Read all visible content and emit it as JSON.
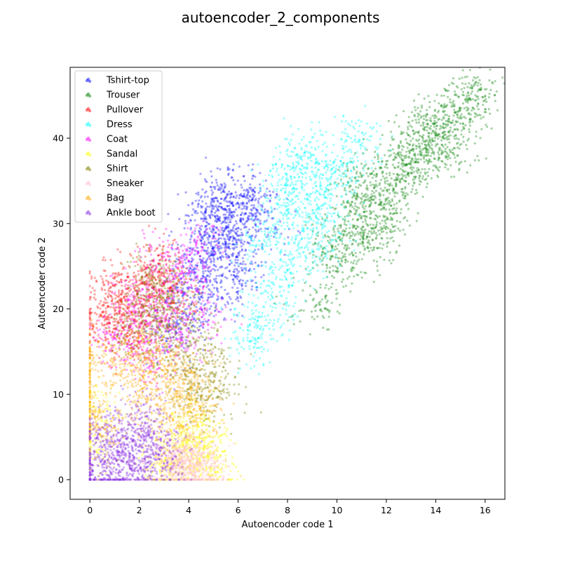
{
  "chart_data": {
    "type": "scatter",
    "title": "autoencoder_2_components",
    "xlabel": "Autoencoder code 1",
    "ylabel": "Autoencoder code 2",
    "xlim": [
      -0.8,
      16.8
    ],
    "ylim": [
      -2.3,
      48.3
    ],
    "xticks": [
      0,
      2,
      4,
      6,
      8,
      10,
      12,
      14,
      16
    ],
    "yticks": [
      0,
      10,
      20,
      30,
      40
    ],
    "grid": false,
    "legend_position": "top-left",
    "series": [
      {
        "name": "Tshirt-top",
        "color": "#0000ff",
        "points": [
          [
            4.5,
            28.0
          ],
          [
            5.2,
            30.5
          ],
          [
            5.8,
            32.1
          ],
          [
            6.3,
            31.2
          ],
          [
            4.9,
            26.3
          ],
          [
            5.5,
            27.8
          ],
          [
            6.6,
            33.4
          ],
          [
            4.2,
            24.6
          ],
          [
            5.0,
            21.7
          ],
          [
            5.7,
            29.2
          ],
          [
            3.8,
            19.5
          ],
          [
            6.1,
            25.3
          ],
          [
            4.7,
            31.6
          ],
          [
            5.4,
            33.8
          ],
          [
            6.9,
            30.0
          ],
          [
            3.5,
            17.2
          ],
          [
            4.0,
            22.5
          ],
          [
            5.9,
            23.8
          ]
        ]
      },
      {
        "name": "Trouser",
        "color": "#008000",
        "points": [
          [
            9.8,
            27.3
          ],
          [
            10.5,
            28.9
          ],
          [
            11.2,
            30.8
          ],
          [
            11.8,
            32.5
          ],
          [
            12.3,
            34.0
          ],
          [
            12.7,
            36.1
          ],
          [
            13.2,
            37.2
          ],
          [
            13.6,
            38.9
          ],
          [
            14.0,
            40.3
          ],
          [
            14.4,
            41.6
          ],
          [
            14.8,
            43.0
          ],
          [
            15.3,
            44.5
          ],
          [
            15.8,
            45.7
          ],
          [
            12.0,
            29.6
          ],
          [
            11.5,
            27.2
          ],
          [
            13.5,
            41.8
          ],
          [
            12.5,
            38.0
          ],
          [
            10.2,
            25.6
          ],
          [
            9.3,
            20.5
          ],
          [
            10.8,
            33.2
          ],
          [
            14.6,
            38.4
          ],
          [
            11.0,
            35.5
          ]
        ]
      },
      {
        "name": "Pullover",
        "color": "#ff0000",
        "points": [
          [
            1.2,
            20.1
          ],
          [
            1.8,
            22.4
          ],
          [
            2.3,
            24.0
          ],
          [
            0.8,
            18.3
          ],
          [
            2.6,
            21.5
          ],
          [
            1.5,
            16.8
          ],
          [
            3.1,
            23.2
          ],
          [
            0.5,
            19.6
          ],
          [
            2.0,
            17.9
          ],
          [
            1.0,
            22.8
          ],
          [
            3.4,
            20.7
          ],
          [
            2.8,
            25.3
          ]
        ]
      },
      {
        "name": "Dress",
        "color": "#00ffff",
        "points": [
          [
            7.0,
            27.5
          ],
          [
            7.6,
            30.2
          ],
          [
            8.2,
            32.8
          ],
          [
            8.8,
            29.4
          ],
          [
            9.3,
            33.5
          ],
          [
            9.8,
            35.8
          ],
          [
            10.4,
            37.0
          ],
          [
            8.0,
            24.5
          ],
          [
            7.4,
            21.3
          ],
          [
            9.0,
            26.7
          ],
          [
            8.5,
            36.4
          ],
          [
            6.8,
            18.6
          ],
          [
            9.6,
            30.9
          ],
          [
            10.9,
            39.8
          ],
          [
            7.9,
            34.5
          ],
          [
            6.5,
            16.2
          ],
          [
            8.9,
            38.3
          ]
        ]
      },
      {
        "name": "Coat",
        "color": "#ff00ff",
        "points": [
          [
            2.2,
            19.8
          ],
          [
            2.8,
            18.1
          ],
          [
            3.4,
            21.9
          ],
          [
            4.0,
            24.2
          ],
          [
            1.6,
            15.4
          ],
          [
            3.0,
            26.1
          ],
          [
            4.6,
            19.3
          ],
          [
            2.5,
            13.7
          ],
          [
            1.0,
            16.6
          ],
          [
            3.7,
            16.4
          ],
          [
            4.3,
            27.5
          ],
          [
            1.8,
            21.2
          ]
        ]
      },
      {
        "name": "Sandal",
        "color": "#ffff00",
        "points": [
          [
            4.2,
            4.8
          ],
          [
            4.6,
            2.7
          ],
          [
            3.9,
            1.2
          ],
          [
            4.8,
            0.6
          ],
          [
            3.5,
            3.5
          ],
          [
            4.4,
            6.2
          ],
          [
            3.2,
            1.8
          ],
          [
            4.9,
            3.9
          ],
          [
            3.7,
            5.5
          ],
          [
            2.9,
            0.4
          ],
          [
            0.1,
            8.5
          ],
          [
            0.3,
            3.2
          ]
        ]
      },
      {
        "name": "Shirt",
        "color": "#808000",
        "points": [
          [
            2.7,
            18.6
          ],
          [
            3.3,
            15.2
          ],
          [
            3.9,
            12.1
          ],
          [
            4.5,
            9.8
          ],
          [
            2.1,
            20.5
          ],
          [
            3.0,
            22.7
          ],
          [
            4.8,
            13.6
          ],
          [
            1.8,
            17.2
          ],
          [
            3.6,
            19.9
          ],
          [
            4.2,
            16.5
          ],
          [
            2.4,
            23.8
          ],
          [
            5.1,
            10.7
          ]
        ]
      },
      {
        "name": "Sneaker",
        "color": "#ffc0cb",
        "points": [
          [
            4.0,
            1.4
          ],
          [
            3.7,
            2.2
          ],
          [
            4.3,
            0.9
          ],
          [
            3.4,
            1.7
          ],
          [
            4.1,
            2.8
          ],
          [
            3.8,
            0.5
          ],
          [
            3.2,
            2.5
          ],
          [
            4.4,
            1.9
          ],
          [
            3.6,
            3.1
          ],
          [
            4.6,
            1.2
          ]
        ]
      },
      {
        "name": "Bag",
        "color": "#ffa500",
        "points": [
          [
            2.6,
            11.8
          ],
          [
            3.3,
            13.5
          ],
          [
            2.0,
            9.7
          ],
          [
            3.8,
            8.4
          ],
          [
            1.4,
            12.9
          ],
          [
            2.9,
            6.8
          ],
          [
            4.2,
            11.2
          ],
          [
            0.1,
            14.6
          ],
          [
            0.2,
            7.3
          ],
          [
            1.9,
            15.8
          ],
          [
            3.5,
            10.1
          ],
          [
            2.3,
            14.2
          ],
          [
            0.6,
            5.9
          ],
          [
            4.5,
            7.6
          ],
          [
            0.0,
            11.5
          ]
        ]
      },
      {
        "name": "Ankle boot",
        "color": "#8a2be2",
        "points": [
          [
            1.2,
            3.2
          ],
          [
            1.8,
            4.6
          ],
          [
            0.6,
            2.1
          ],
          [
            2.3,
            1.5
          ],
          [
            1.0,
            6.3
          ],
          [
            1.5,
            0.8
          ],
          [
            2.7,
            3.7
          ],
          [
            0.3,
            4.9
          ],
          [
            2.0,
            7.1
          ],
          [
            0.8,
            0.3
          ],
          [
            3.0,
            1.9
          ],
          [
            1.6,
            2.6
          ],
          [
            2.4,
            5.4
          ],
          [
            0.1,
            1.1
          ]
        ]
      }
    ]
  }
}
